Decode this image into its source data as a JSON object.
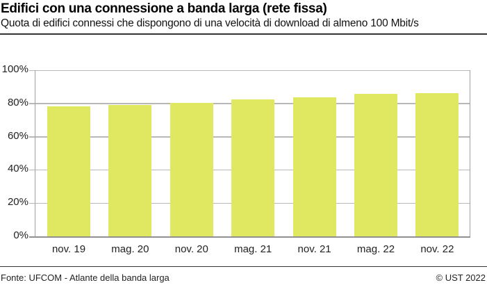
{
  "header": {
    "title": "Edifici con una connessione a banda larga (rete fissa)",
    "subtitle": "Quota di edifici connessi che dispongono di una velocità di download di almeno 100 Mbit/s"
  },
  "footer": {
    "source": "Fonte: UFCOM - Atlante della banda larga",
    "copyright": "© UST 2022"
  },
  "colors": {
    "bar": "#e0e862",
    "grid": "#b8b8b8"
  },
  "y_ticks": [
    "100%",
    "80%",
    "60%",
    "40%",
    "20%",
    "0%"
  ],
  "chart_data": {
    "type": "bar",
    "title": "Edifici con una connessione a banda larga (rete fissa)",
    "subtitle": "Quota di edifici connessi che dispongono di una velocità di download di almeno 100 Mbit/s",
    "categories": [
      "nov. 19",
      "mag. 20",
      "nov. 20",
      "mag. 21",
      "nov. 21",
      "mag. 22",
      "nov. 22"
    ],
    "values": [
      78.1,
      79.1,
      80.2,
      82.4,
      83.8,
      85.9,
      86.2
    ],
    "xlabel": "",
    "ylabel": "",
    "ylim": [
      0,
      100
    ],
    "y_tick_labels": [
      "0%",
      "20%",
      "40%",
      "60%",
      "80%",
      "100%"
    ],
    "grid": true,
    "legend": "none",
    "source": "Fonte: UFCOM - Atlante della banda larga",
    "copyright": "© UST 2022"
  }
}
